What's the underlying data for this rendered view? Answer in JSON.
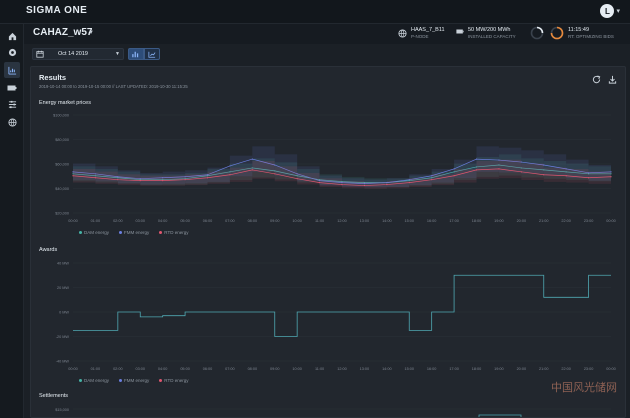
{
  "app": {
    "brand": "SIGMA ONE",
    "user_initial": "L"
  },
  "context": {
    "title": "CAHAZ_w57"
  },
  "stats": [
    {
      "value": "HAAS_7_B11",
      "label": "P-NODE"
    },
    {
      "value": "50 MW/200 MWh",
      "label": "INSTALLED CAPACITY"
    },
    {
      "value": "11:15:49",
      "label": "RT: OPTIMIZING BIDS"
    }
  ],
  "toolbar": {
    "date": "Oct 14 2019"
  },
  "results": {
    "title": "Results",
    "subtitle": "2019-10-14 00:00 to 2019-10-15 00:00 // LAST UPDATED: 2019-10-30 11:15:25"
  },
  "colors": {
    "dam": "#46b3a6",
    "fmm": "#6b7fe0",
    "rtd": "#e0566f",
    "awards": "#4fa8b2"
  },
  "x_ticks": [
    "00:00",
    "01:00",
    "02:00",
    "03:00",
    "04:00",
    "05:00",
    "06:00",
    "07:00",
    "08:00",
    "09:00",
    "10:00",
    "11:00",
    "12:00",
    "13:00",
    "14:00",
    "15:00",
    "16:00",
    "17:00",
    "18:00",
    "19:00",
    "20:00",
    "21:00",
    "22:00",
    "23:00",
    "00:00"
  ],
  "legend": {
    "dam": "DAM energy",
    "fmm": "FMM energy",
    "rtd": "RTD energy"
  },
  "chart_data": [
    {
      "type": "line",
      "title": "Energy market prices",
      "y_ticks": [
        "$100,000",
        "$80,000",
        "$60,000",
        "$40,000",
        "$20,000"
      ],
      "ylim": [
        0,
        100
      ],
      "grid": true,
      "legend_position": "bottom-left",
      "series": [
        {
          "name": "DAM energy",
          "values": [
            40,
            38,
            36,
            34,
            34,
            35,
            38,
            42,
            46,
            43,
            38,
            34,
            32,
            31,
            31,
            33,
            36,
            42,
            47,
            49,
            46,
            44,
            42,
            40,
            40
          ]
        },
        {
          "name": "FMM energy",
          "values": [
            42,
            40,
            37,
            35,
            36,
            37,
            39,
            48,
            55,
            49,
            40,
            33,
            31,
            30,
            31,
            34,
            38,
            45,
            55,
            54,
            52,
            49,
            45,
            41,
            42
          ]
        },
        {
          "name": "RTD energy",
          "values": [
            38,
            36,
            34,
            33,
            33,
            34,
            36,
            39,
            44,
            40,
            35,
            31,
            29,
            28,
            29,
            31,
            34,
            38,
            44,
            45,
            42,
            39,
            38,
            36,
            37
          ]
        }
      ]
    },
    {
      "type": "line",
      "title": "Awards",
      "y_ticks": [
        "40 MW",
        "20 MW",
        "0 MW",
        "-20 MW",
        "-40 MW"
      ],
      "ylim": [
        -40,
        40
      ],
      "grid": true,
      "legend_position": "bottom-left",
      "series": [
        {
          "name": "Awards",
          "values": [
            -15,
            -15,
            0,
            -4,
            -3,
            0,
            0,
            0,
            0,
            -20,
            0,
            0,
            0,
            0,
            0,
            -15,
            0,
            30,
            30,
            30,
            30,
            12,
            12,
            30,
            30
          ]
        }
      ]
    }
  ],
  "settlements": {
    "title": "Settlements"
  },
  "watermark": "中国风光储网"
}
